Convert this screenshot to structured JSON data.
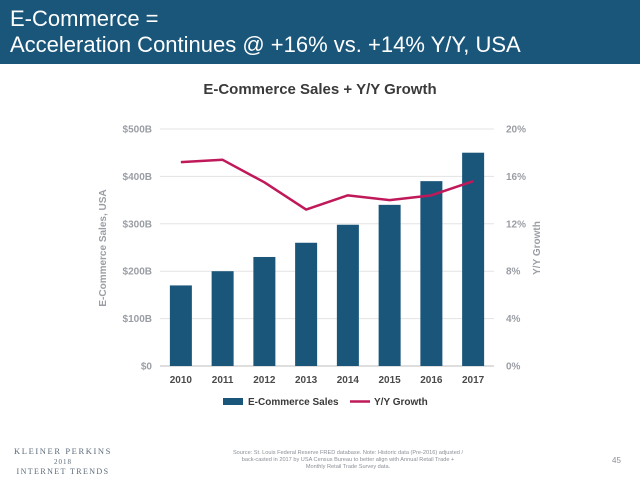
{
  "slide": {
    "title_line1": "E-Commerce =",
    "title_line2": "Acceleration Continues @ +16% vs. +14% Y/Y, USA",
    "footer": {
      "logo_line1": "KLEINER PERKINS",
      "logo_line2": "2018",
      "logo_line3": "INTERNET TRENDS",
      "source": "Source: St. Louis Federal Reserve FRED database.  Note: Historic data (Pre-2016) adjusted / back-casted in 2017 by USA Census Bureau to better align with Annual Retail Trade + Monthly Retail Trade Survey data.",
      "page_number": "45"
    }
  },
  "chart_data": {
    "type": "bar",
    "title": "E-Commerce Sales + Y/Y Growth",
    "categories": [
      "2010",
      "2011",
      "2012",
      "2013",
      "2014",
      "2015",
      "2016",
      "2017"
    ],
    "series": [
      {
        "name": "E-Commerce Sales",
        "type": "bar",
        "axis": "left",
        "color": "#1a567a",
        "values": [
          170,
          200,
          230,
          260,
          298,
          340,
          390,
          450
        ]
      },
      {
        "name": "Y/Y Growth",
        "type": "line",
        "axis": "right",
        "color": "#c0195a",
        "values": [
          17.2,
          17.4,
          15.5,
          13.2,
          14.4,
          14.0,
          14.4,
          15.6
        ]
      }
    ],
    "ylabel": "E-Commerce Sales, USA",
    "y2label": "Y/Y Growth",
    "ylim": [
      0,
      500
    ],
    "y2lim": [
      0,
      20
    ],
    "yticks": [
      "$0",
      "$100B",
      "$200B",
      "$300B",
      "$400B",
      "$500B"
    ],
    "y2ticks": [
      "0%",
      "4%",
      "8%",
      "12%",
      "16%",
      "20%"
    ],
    "grid": true,
    "legend": "bottom",
    "colors": {
      "bar": "#1a567a",
      "line": "#c0195a",
      "axis_text": "#9a9ea4",
      "grid": "#e3e3e3",
      "title": "#3a3a3a"
    }
  }
}
